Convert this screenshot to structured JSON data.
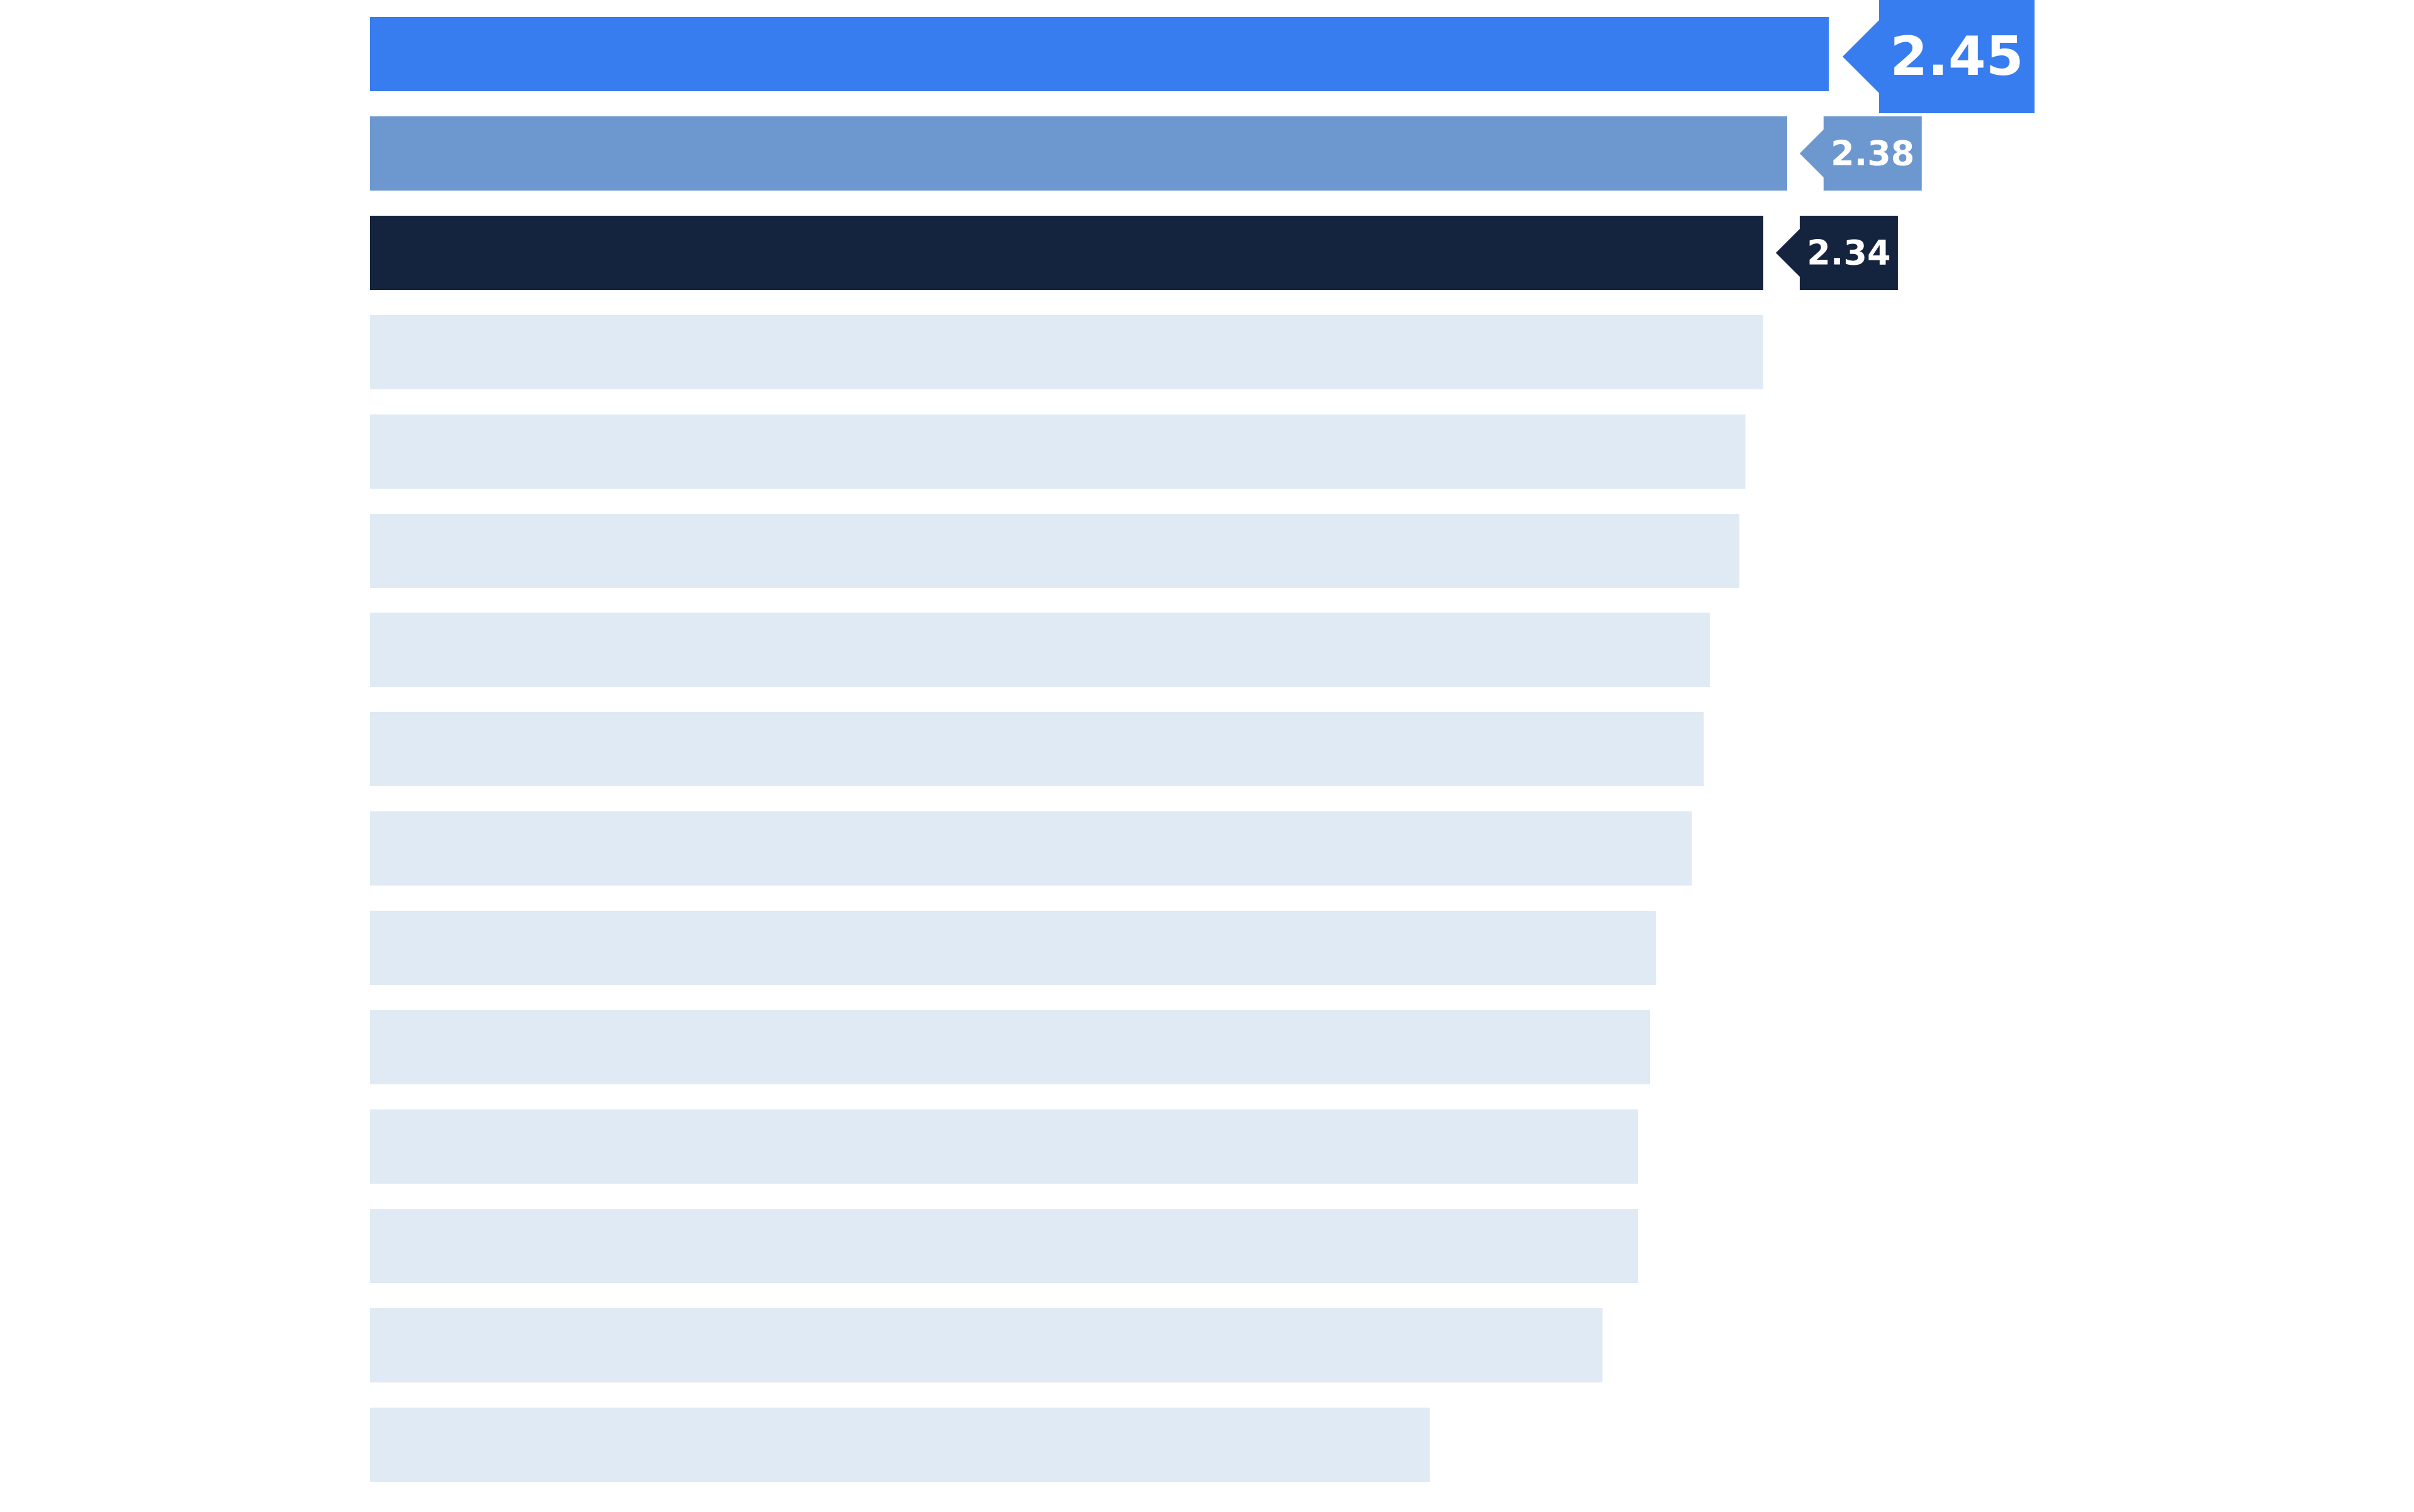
{
  "chart_data": {
    "type": "bar",
    "orientation": "horizontal",
    "title": "",
    "xlabel": "",
    "ylabel": "",
    "xlim": [
      0,
      2.45
    ],
    "grid": false,
    "legend": "none",
    "values": [
      2.45,
      2.38,
      2.34,
      2.34,
      2.31,
      2.3,
      2.25,
      2.24,
      2.22,
      2.16,
      2.15,
      2.13,
      2.13,
      2.07,
      1.78
    ],
    "highlights": [
      {
        "index": 0,
        "label": "2.45",
        "color": "#377DEF"
      },
      {
        "index": 1,
        "label": "2.38",
        "color": "#6C98CF"
      },
      {
        "index": 2,
        "label": "2.34",
        "color": "#15243E"
      }
    ],
    "default_bar_color": "#E0EAF4"
  }
}
